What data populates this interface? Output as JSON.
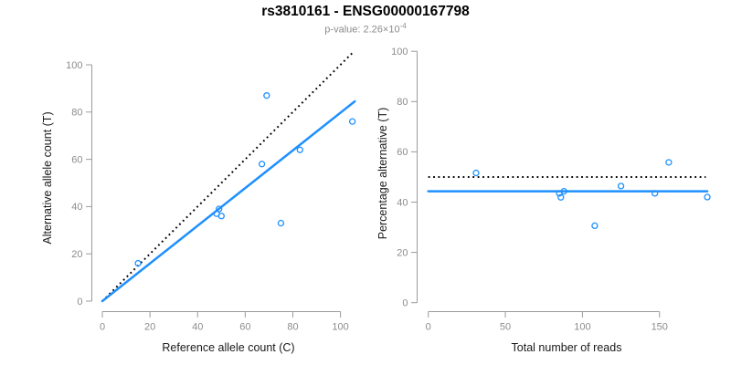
{
  "header": {
    "title": "rs3810161 - ENSG00000167798",
    "subtitle_prefix": "p-value: 2.26×10",
    "subtitle_exponent": "-4"
  },
  "colors": {
    "accent_blue": "#1E90FF",
    "dotted_line_black": "#000000",
    "axis_gray": "#9b9b9b",
    "tick_label_gray": "#8c8c8c",
    "title_black": "#000000"
  },
  "chart_data": [
    {
      "type": "scatter",
      "xlabel": "Reference allele count (C)",
      "ylabel": "Alternative allele count (T)",
      "xticks": [
        0,
        20,
        40,
        60,
        80,
        100
      ],
      "yticks": [
        0,
        20,
        40,
        60,
        80,
        100
      ],
      "xlim": [
        0,
        106
      ],
      "ylim": [
        0,
        106
      ],
      "grid": false,
      "points": [
        [
          15,
          16
        ],
        [
          48,
          37
        ],
        [
          49,
          39
        ],
        [
          50,
          36
        ],
        [
          67,
          58
        ],
        [
          69,
          87
        ],
        [
          75,
          33
        ],
        [
          83,
          64
        ],
        [
          105,
          76
        ]
      ],
      "identity_line": {
        "style": "dotted",
        "from": [
          0,
          0
        ],
        "to": [
          105.5,
          105.5
        ]
      },
      "fit_line": {
        "style": "solid",
        "from": [
          0,
          0
        ],
        "to": [
          106,
          84.5
        ]
      }
    },
    {
      "type": "scatter",
      "xlabel": "Total number of reads",
      "ylabel": "Percentage alternative (T)",
      "xticks": [
        0,
        50,
        100,
        150
      ],
      "yticks": [
        0,
        20,
        40,
        60,
        80,
        100
      ],
      "xlim": [
        0,
        181
      ],
      "ylim": [
        0,
        100
      ],
      "grid": false,
      "points": [
        [
          31,
          51.6
        ],
        [
          85,
          43.5
        ],
        [
          86,
          41.9
        ],
        [
          88,
          44.3
        ],
        [
          108,
          30.6
        ],
        [
          125,
          46.4
        ],
        [
          147,
          43.5
        ],
        [
          156,
          55.8
        ],
        [
          181,
          42.0
        ]
      ],
      "identity_line": {
        "style": "dotted",
        "from": [
          0,
          50
        ],
        "to": [
          180,
          50
        ]
      },
      "fit_line": {
        "style": "solid",
        "from": [
          0,
          44.3
        ],
        "to": [
          181,
          44.3
        ]
      }
    }
  ]
}
